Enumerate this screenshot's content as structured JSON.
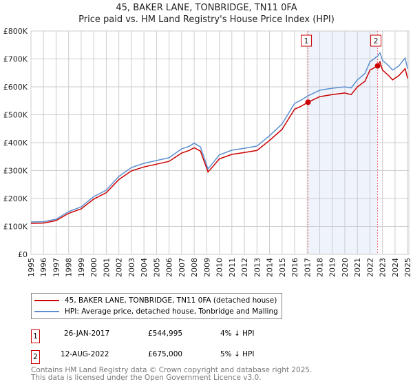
{
  "chart_data": {
    "type": "line",
    "title": "45, BAKER LANE, TONBRIDGE, TN11 0FA",
    "subtitle": "Price paid vs. HM Land Registry's House Price Index (HPI)",
    "xlim": [
      1995,
      2025.1
    ],
    "ylim": [
      0,
      800000
    ],
    "xticks": [
      "1995",
      "1996",
      "1997",
      "1998",
      "1999",
      "2000",
      "2001",
      "2002",
      "2003",
      "2004",
      "2005",
      "2006",
      "2007",
      "2008",
      "2009",
      "2010",
      "2011",
      "2012",
      "2013",
      "2014",
      "2015",
      "2016",
      "2017",
      "2018",
      "2019",
      "2020",
      "2021",
      "2022",
      "2023",
      "2024",
      "2025"
    ],
    "yticks": [
      {
        "v": 0,
        "label": "£0"
      },
      {
        "v": 100000,
        "label": "£100K"
      },
      {
        "v": 200000,
        "label": "£200K"
      },
      {
        "v": 300000,
        "label": "£300K"
      },
      {
        "v": 400000,
        "label": "£400K"
      },
      {
        "v": 500000,
        "label": "£500K"
      },
      {
        "v": 600000,
        "label": "£600K"
      },
      {
        "v": 700000,
        "label": "£700K"
      },
      {
        "v": 800000,
        "label": "£800K"
      }
    ],
    "grid": true,
    "series": [
      {
        "name": "45, BAKER LANE, TONBRIDGE, TN11 0FA (detached house)",
        "color": "#cc0000",
        "x": [
          1995,
          1996,
          1997,
          1998,
          1999,
          2000,
          2001,
          2002,
          2003,
          2004,
          2005,
          2006,
          2007,
          2007.6,
          2008,
          2008.5,
          2009.1,
          2009.5,
          2010,
          2011,
          2012,
          2013,
          2014,
          2015,
          2016,
          2016.5,
          2017.07,
          2018,
          2019,
          2020,
          2020.5,
          2021,
          2021.6,
          2022,
          2022.61,
          2022.8,
          2023,
          2023.5,
          2023.8,
          2024.3,
          2024.8,
          2025
        ],
        "y": [
          111000,
          112000,
          121000,
          147000,
          163000,
          198000,
          221000,
          268000,
          299000,
          313000,
          323000,
          333000,
          363000,
          372000,
          382000,
          370000,
          295000,
          315000,
          342000,
          358000,
          365000,
          372000,
          408000,
          448000,
          520000,
          530000,
          544995,
          565000,
          572000,
          578000,
          572000,
          600000,
          620000,
          660000,
          675000,
          690000,
          660000,
          640000,
          625000,
          640000,
          665000,
          630000
        ]
      },
      {
        "name": "HPI: Average price, detached house, Tonbridge and Malling",
        "color": "#5b8fd0",
        "x": [
          1995,
          1996,
          1997,
          1998,
          1999,
          2000,
          2001,
          2002,
          2003,
          2004,
          2005,
          2006,
          2007,
          2007.6,
          2008,
          2008.5,
          2009.1,
          2009.5,
          2010,
          2011,
          2012,
          2013,
          2014,
          2015,
          2016,
          2016.5,
          2017.07,
          2018,
          2019,
          2020,
          2020.5,
          2021,
          2021.6,
          2022,
          2022.61,
          2022.8,
          2023,
          2023.5,
          2023.8,
          2024.3,
          2024.8,
          2025
        ],
        "y": [
          116000,
          117000,
          126000,
          153000,
          170000,
          207000,
          230000,
          279000,
          311000,
          326000,
          336000,
          346000,
          378000,
          387000,
          398000,
          385000,
          306000,
          328000,
          356000,
          373000,
          380000,
          388000,
          425000,
          467000,
          541000,
          552000,
          568000,
          588000,
          595000,
          600000,
          596000,
          625000,
          648000,
          690000,
          710000,
          722000,
          695000,
          675000,
          660000,
          675000,
          703000,
          665000
        ]
      }
    ],
    "shaded_range": [
      2017.07,
      2022.61
    ],
    "annotations": [
      {
        "label": "1",
        "x": 2017.07,
        "y": 544995,
        "date": "26-JAN-2017",
        "price": "£544,995",
        "hpi": "4% ↓ HPI"
      },
      {
        "label": "2",
        "x": 2022.61,
        "y": 675000,
        "date": "12-AUG-2022",
        "price": "£675,000",
        "hpi": "5% ↓ HPI"
      }
    ]
  },
  "footer": [
    "Contains HM Land Registry data © Crown copyright and database right 2025.",
    "This data is licensed under the Open Government Licence v3.0."
  ]
}
